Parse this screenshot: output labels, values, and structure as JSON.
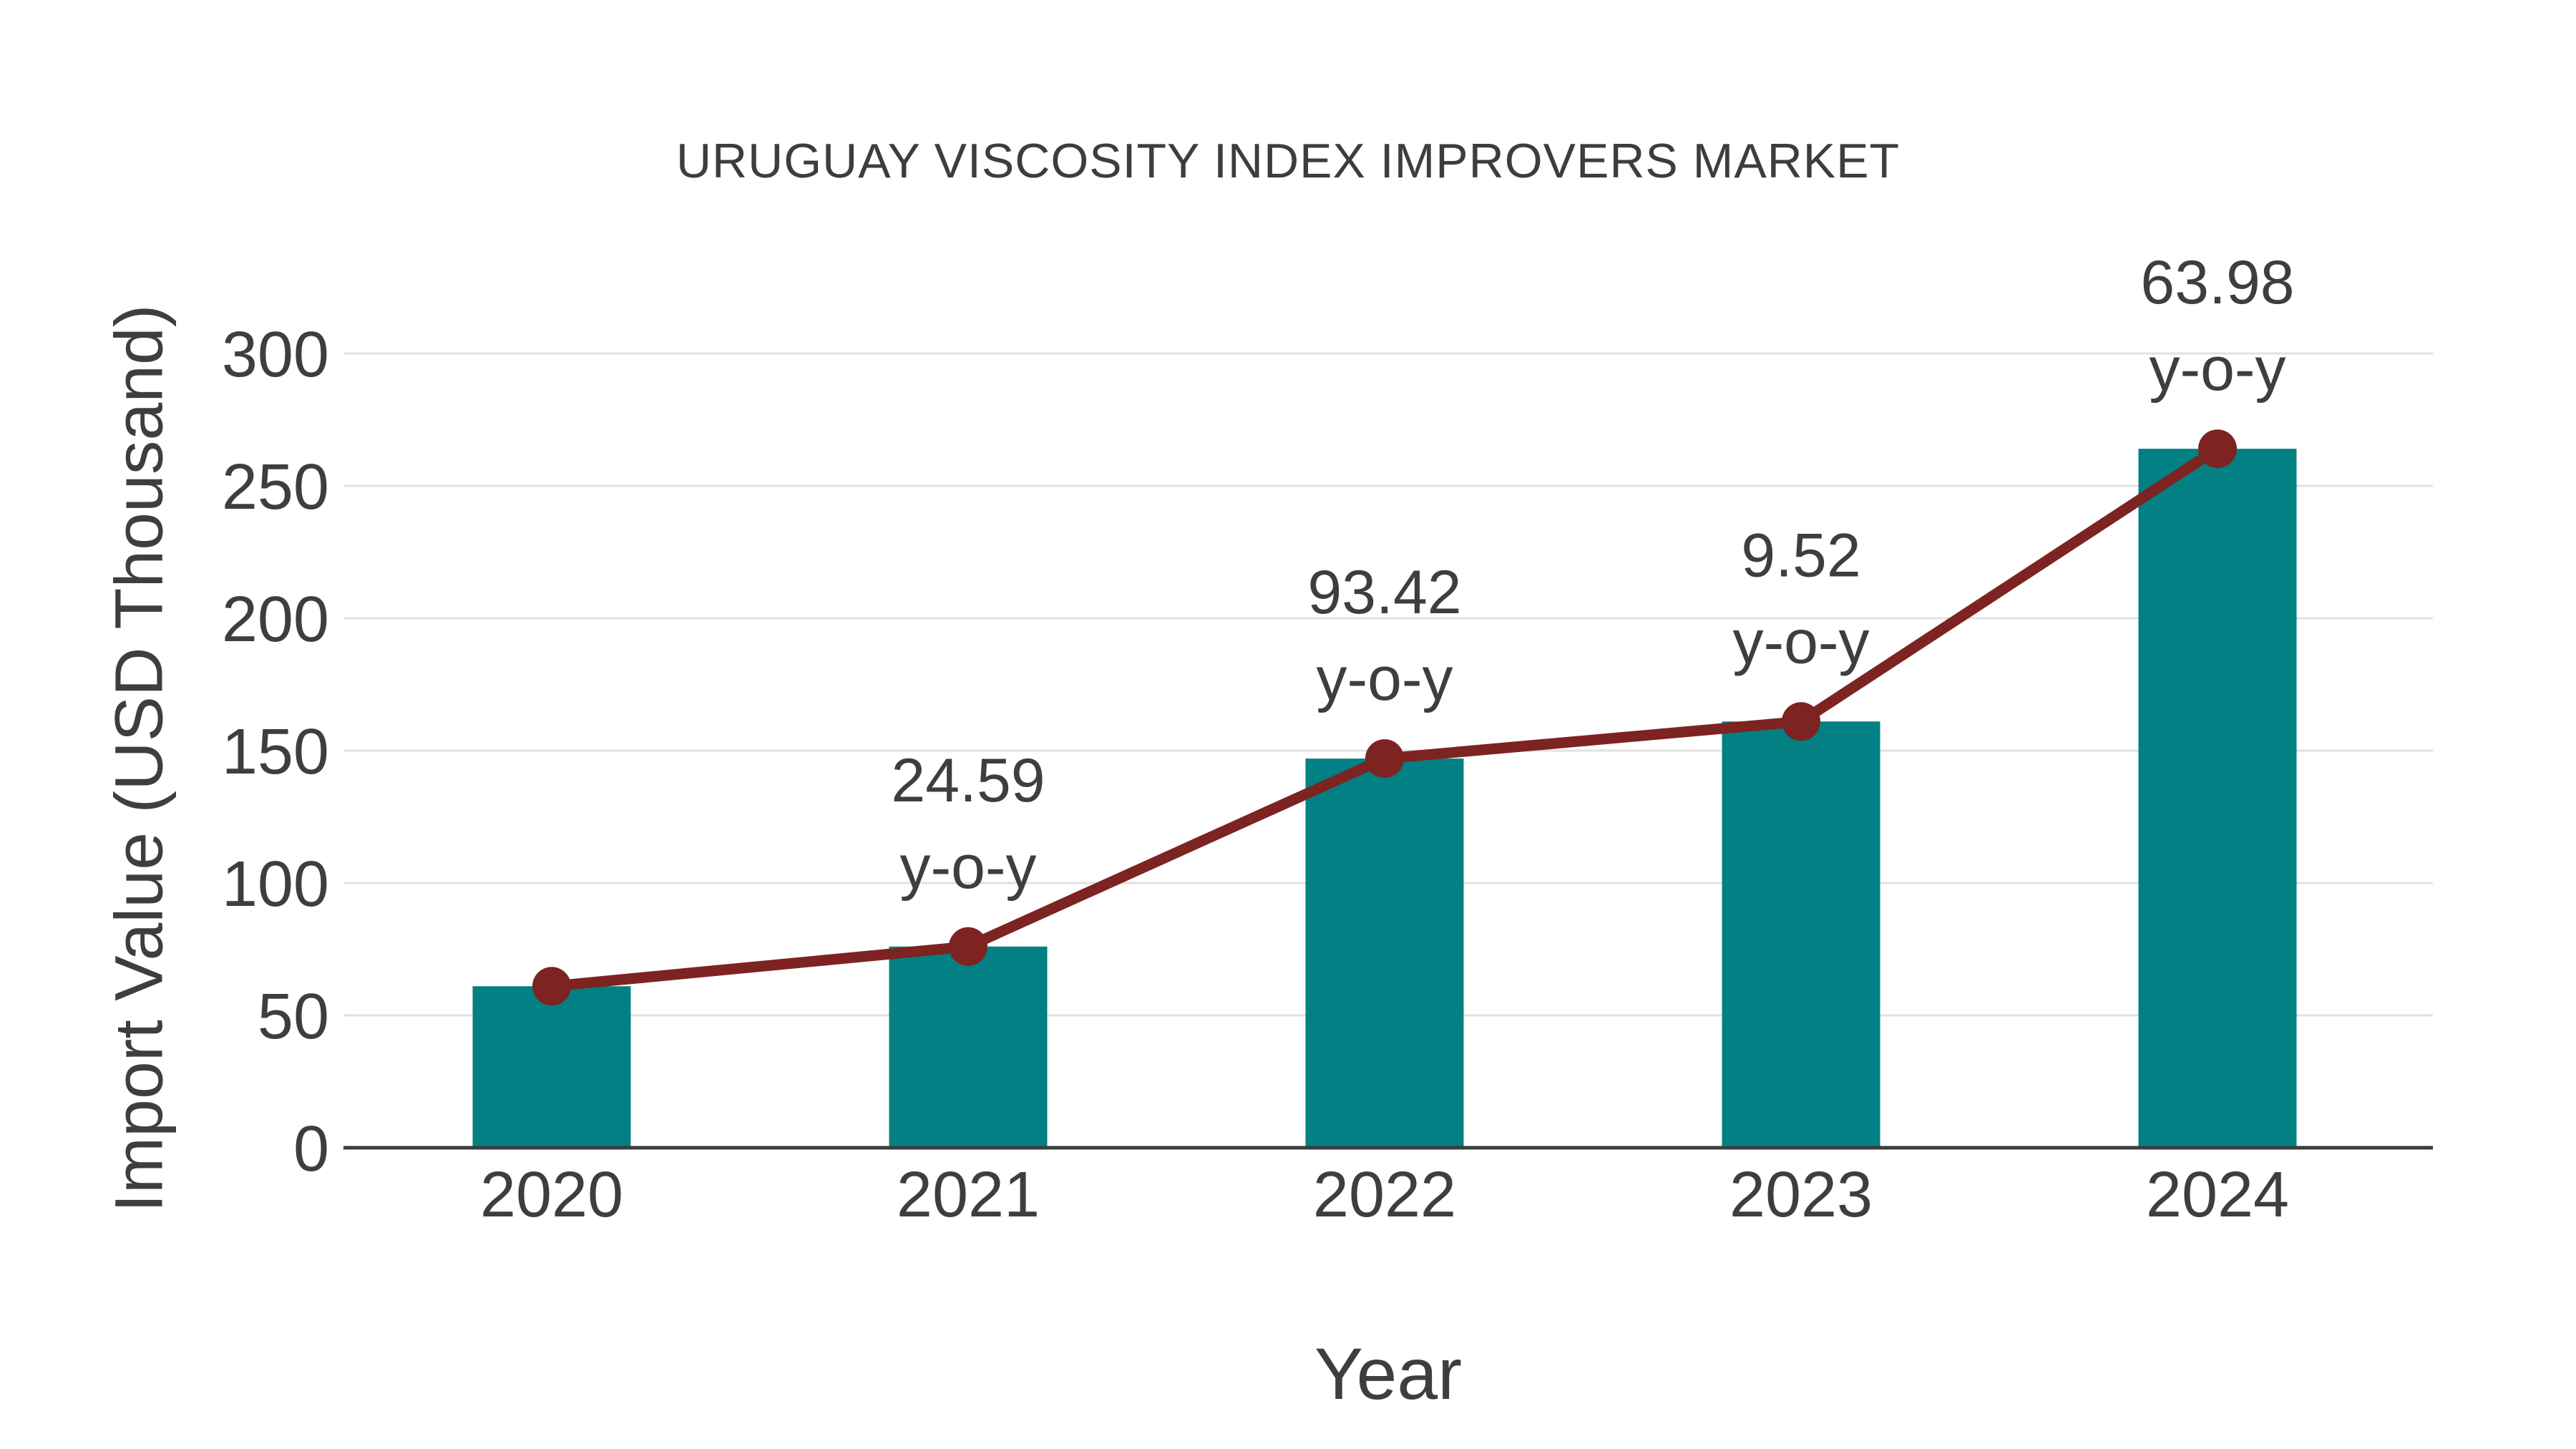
{
  "chart_data": {
    "type": "bar+line",
    "title": "URUGUAY VISCOSITY INDEX IMPROVERS MARKET",
    "xlabel": "Year",
    "ylabel": "Import Value (USD Thousand)",
    "categories": [
      "2020",
      "2021",
      "2022",
      "2023",
      "2024"
    ],
    "series": [
      {
        "name": "Import Value (bar)",
        "type": "bar",
        "values": [
          61,
          76,
          147,
          161,
          264
        ]
      },
      {
        "name": "Import Value trend (line)",
        "type": "line",
        "values": [
          61,
          76,
          147,
          161,
          264
        ]
      }
    ],
    "annotations": [
      {
        "category": "2021",
        "value": "24.59",
        "suffix": "y-o-y"
      },
      {
        "category": "2022",
        "value": "93.42",
        "suffix": "y-o-y"
      },
      {
        "category": "2023",
        "value": "9.52",
        "suffix": "y-o-y"
      },
      {
        "category": "2024",
        "value": "63.98",
        "suffix": "y-o-y"
      }
    ],
    "yticks": [
      0,
      50,
      100,
      150,
      200,
      250,
      300
    ],
    "ylim": [
      0,
      300
    ],
    "grid": true,
    "legend_position": "none",
    "colors": {
      "bar": "#038083",
      "line": "#7d2322",
      "marker": "#7d2322",
      "text": "#3e3e3e",
      "gridline": "#e1e1e1",
      "axis": "#3c3c3c",
      "background": "#ffffff"
    }
  }
}
